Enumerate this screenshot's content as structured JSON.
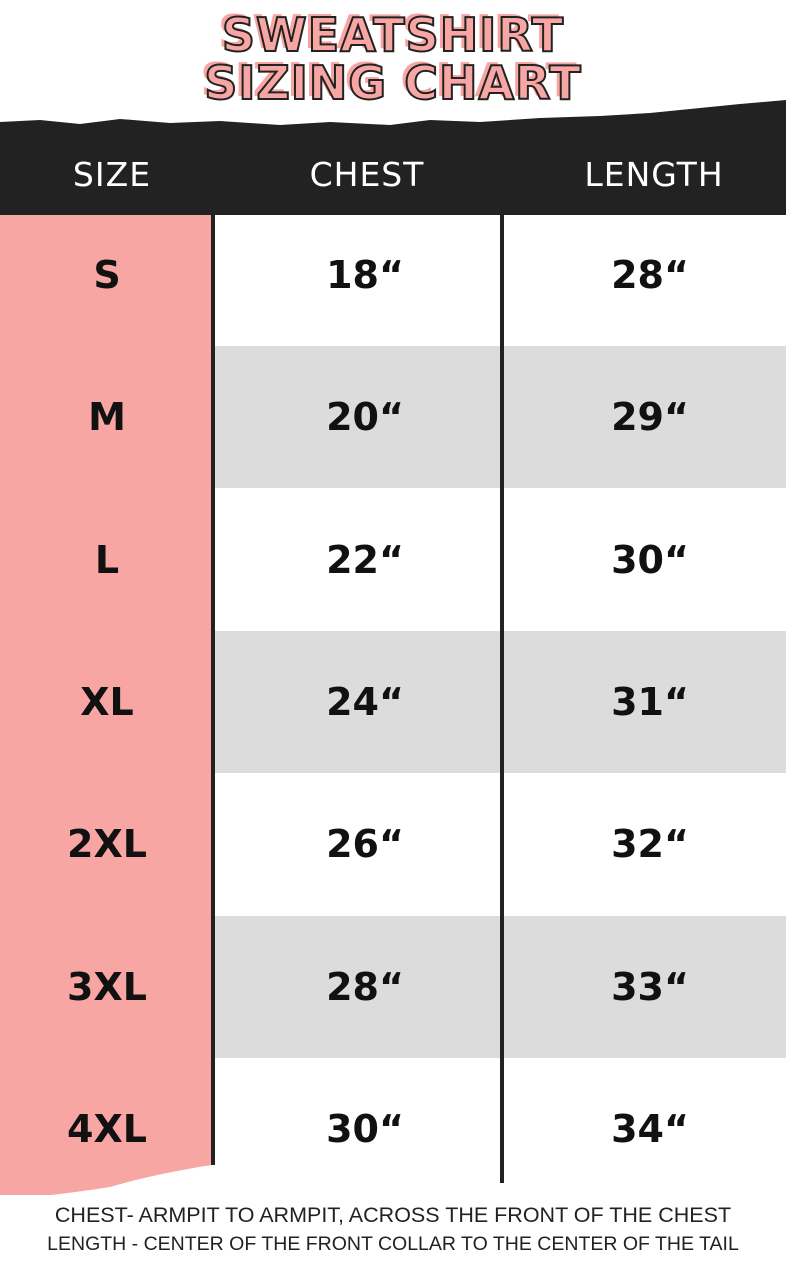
{
  "title": {
    "line1": "SWEATSHIRT",
    "line2": "SIZING CHART"
  },
  "colors": {
    "pink": "#f7a6a4",
    "header": "#222222",
    "stripe": "#dcdcdc"
  },
  "chart_data": {
    "type": "table",
    "columns": [
      "SIZE",
      "CHEST",
      "LENGTH"
    ],
    "rows": [
      [
        "S",
        "18“",
        "28“"
      ],
      [
        "M",
        "20“",
        "29“"
      ],
      [
        "L",
        "22“",
        "30“"
      ],
      [
        "XL",
        "24“",
        "31“"
      ],
      [
        "2XL",
        "26“",
        "32“"
      ],
      [
        "3XL",
        "28“",
        "33“"
      ],
      [
        "4XL",
        "30“",
        "34“"
      ]
    ]
  },
  "footer": {
    "line1": "CHEST- ARMPIT TO ARMPIT, ACROSS THE FRONT OF THE CHEST",
    "line2": "LENGTH - CENTER OF THE FRONT COLLAR TO THE CENTER OF THE TAIL"
  }
}
